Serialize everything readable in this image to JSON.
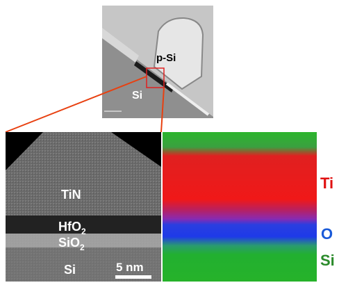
{
  "overview_image": {
    "gate_label": "p-Si",
    "substrate_label": "Si"
  },
  "tem_panel": {
    "top_layer": "TiN",
    "oxide_layer": {
      "text": "HfO",
      "sub": "2"
    },
    "interface_layer": {
      "text": "SiO",
      "sub": "2"
    },
    "substrate": "Si",
    "scale_bar": "5 nm"
  },
  "eds_legend": {
    "first": "Ti",
    "second": "O",
    "third": "Si"
  }
}
